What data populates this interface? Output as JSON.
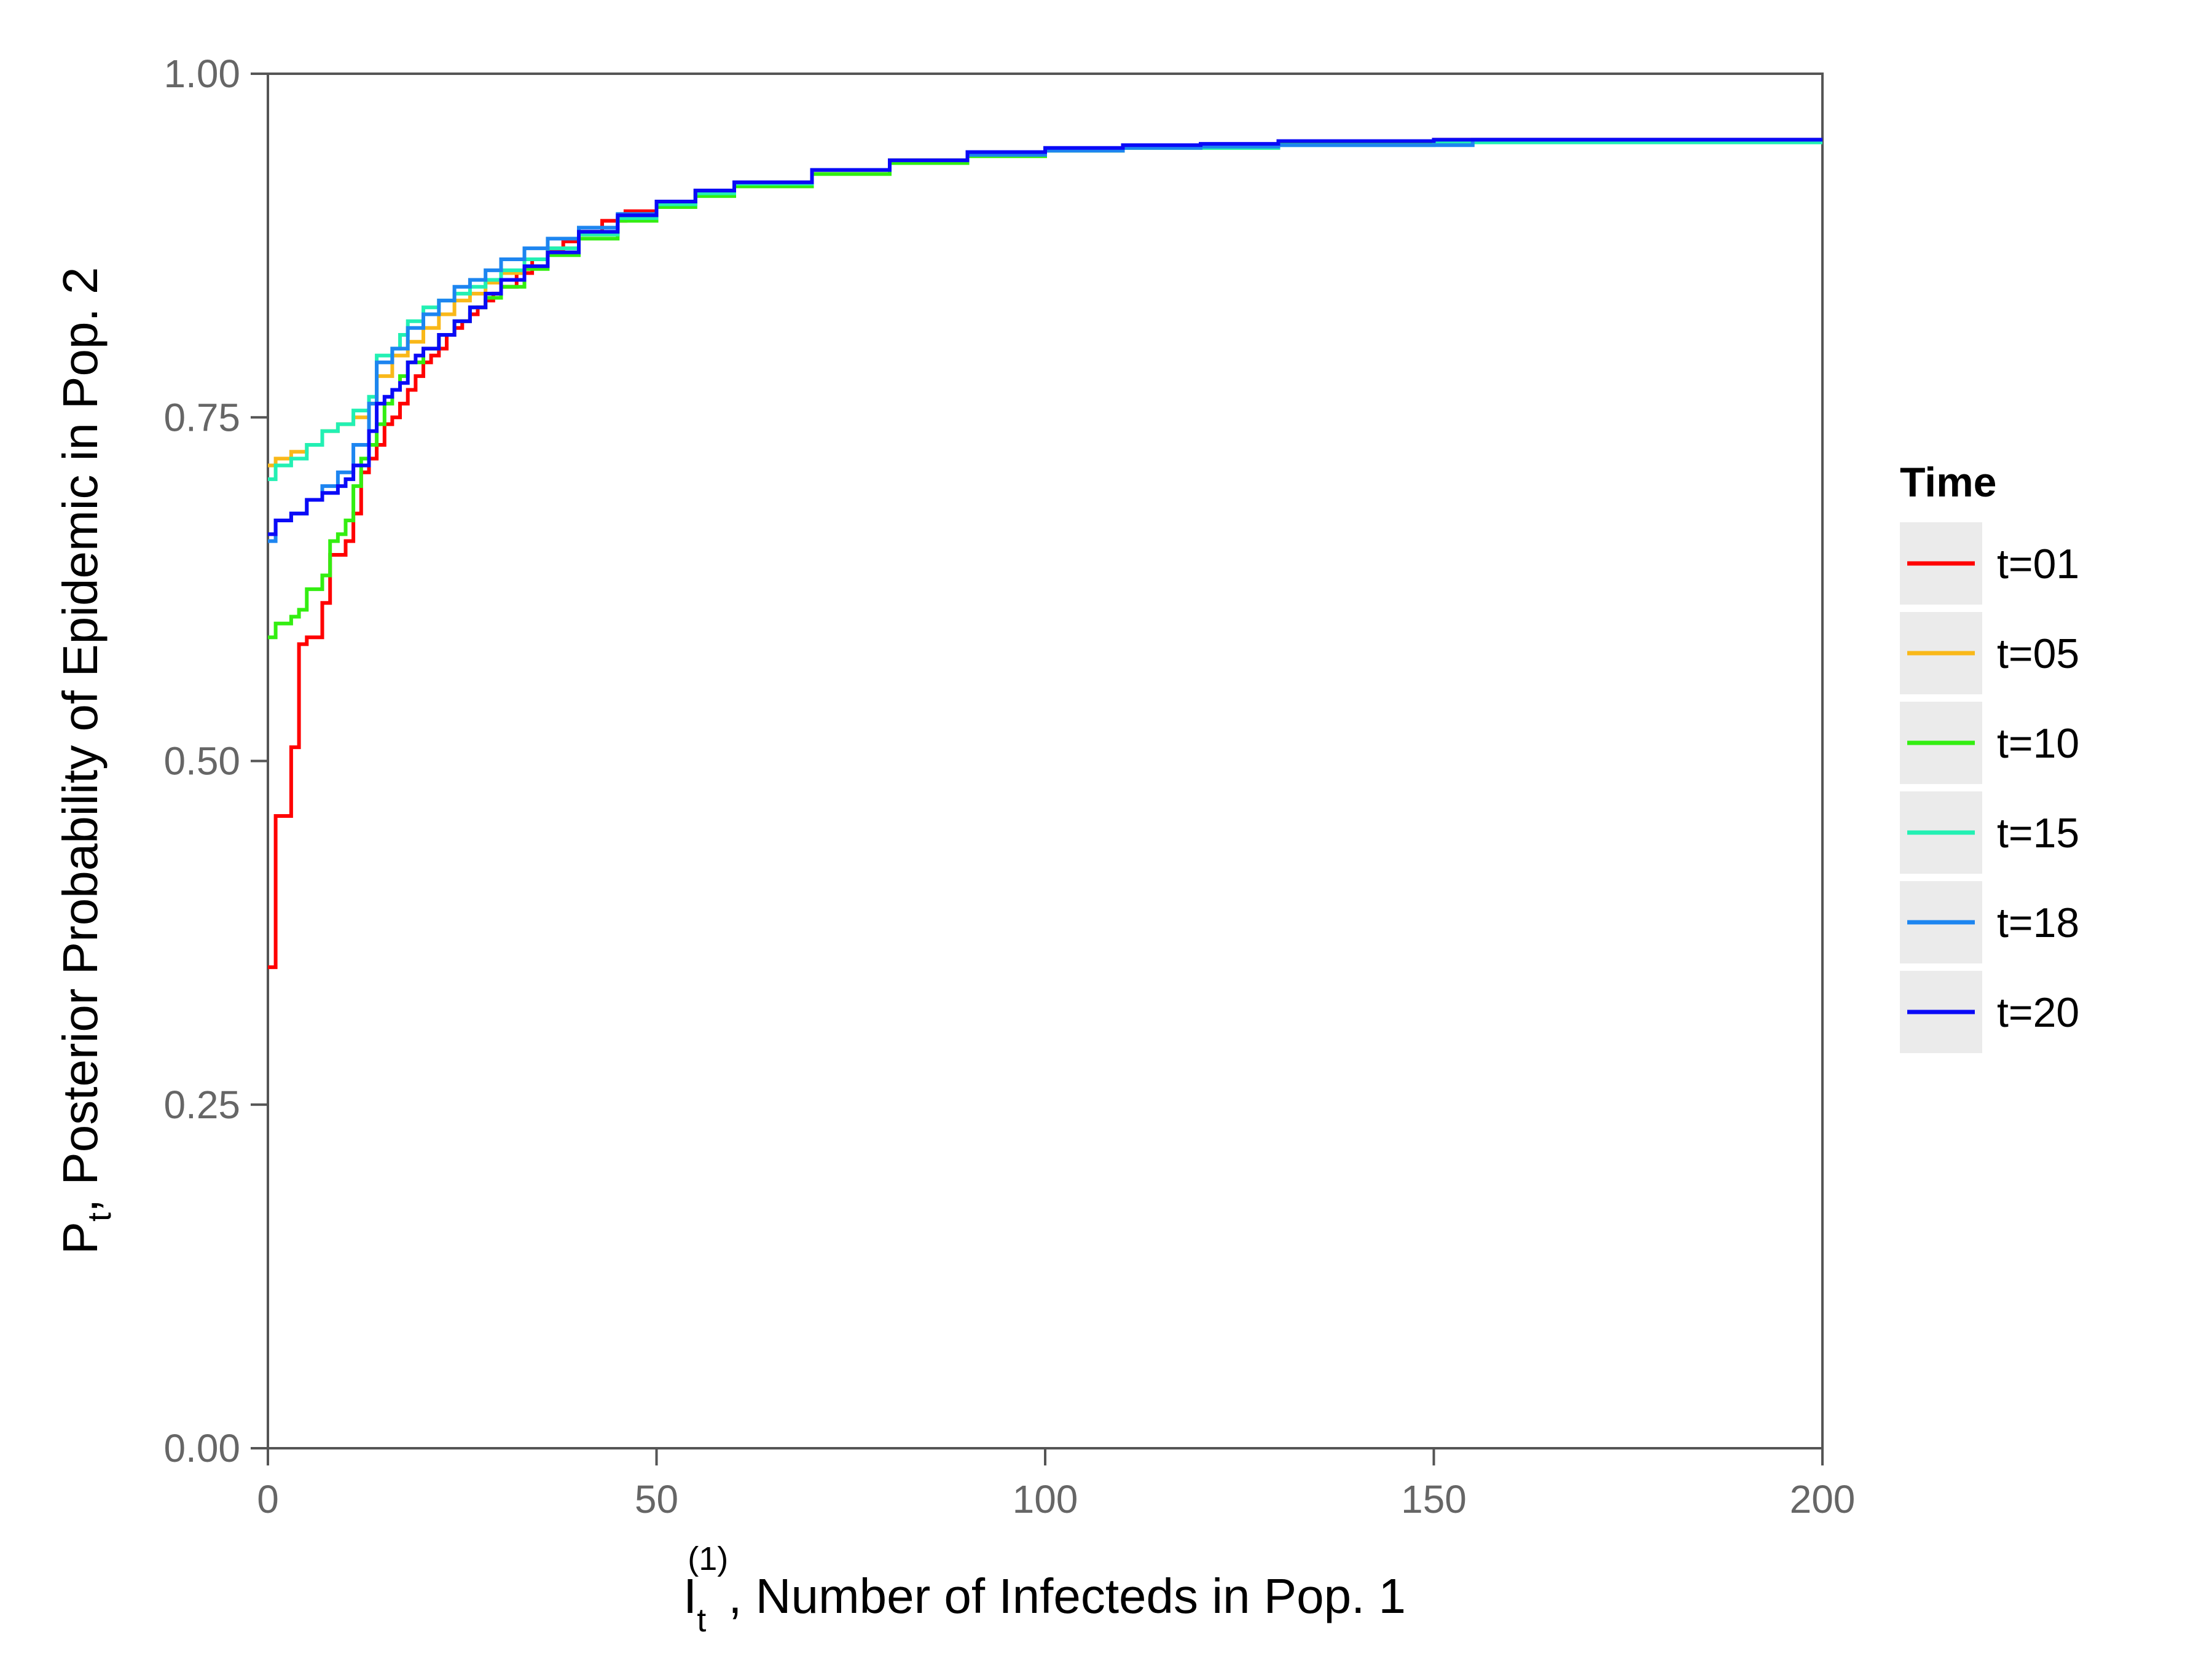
{
  "chart_data": {
    "type": "line",
    "step": true,
    "title": "",
    "xlabel": {
      "main": "I",
      "sub": "t",
      "sup": "(1)",
      "rest": ", Number of Infecteds in Pop. 1"
    },
    "ylabel": {
      "main": "P",
      "sub": "t",
      "rest": ", Posterior Probability of Epidemic in Pop. 2"
    },
    "xlim": [
      0,
      200
    ],
    "ylim": [
      0,
      1
    ],
    "xticks": [
      0,
      50,
      100,
      150,
      200
    ],
    "yticks": [
      0,
      0.25,
      0.5,
      0.75,
      1
    ],
    "xtick_labels": [
      "0",
      "50",
      "100",
      "150",
      "200"
    ],
    "ytick_labels": [
      "0.00",
      "0.25",
      "0.50",
      "0.75",
      "1.00"
    ],
    "legend": {
      "title": "Time",
      "position": "right"
    },
    "series": [
      {
        "name": "t=01",
        "color": "#ff0000",
        "x": [
          0,
          1,
          3,
          4,
          5,
          7,
          8,
          10,
          11,
          12,
          13,
          14,
          15,
          16,
          17,
          18,
          19,
          20,
          21,
          22,
          23,
          24,
          25,
          26,
          27,
          28,
          29,
          30,
          32,
          34,
          36,
          38,
          40,
          43,
          46,
          50,
          55,
          60,
          70,
          80,
          90,
          100,
          110,
          120,
          130,
          150,
          200
        ],
        "y": [
          0.35,
          0.46,
          0.51,
          0.585,
          0.59,
          0.615,
          0.65,
          0.66,
          0.68,
          0.71,
          0.72,
          0.73,
          0.745,
          0.75,
          0.76,
          0.77,
          0.78,
          0.79,
          0.795,
          0.8,
          0.81,
          0.815,
          0.82,
          0.825,
          0.83,
          0.835,
          0.84,
          0.845,
          0.855,
          0.865,
          0.872,
          0.878,
          0.885,
          0.893,
          0.9,
          0.907,
          0.915,
          0.921,
          0.93,
          0.937,
          0.941,
          0.945,
          0.947,
          0.948,
          0.95,
          0.952,
          0.952
        ]
      },
      {
        "name": "t=05",
        "color": "#f9b819",
        "x": [
          0,
          1,
          3,
          5,
          7,
          9,
          11,
          13,
          14,
          16,
          18,
          20,
          22,
          24,
          26,
          28,
          30,
          33,
          36,
          40,
          45,
          50,
          55,
          60,
          70,
          80,
          90,
          100,
          110,
          130,
          150,
          200
        ],
        "y": [
          0.715,
          0.72,
          0.725,
          0.73,
          0.74,
          0.745,
          0.75,
          0.76,
          0.78,
          0.795,
          0.805,
          0.815,
          0.825,
          0.835,
          0.84,
          0.848,
          0.855,
          0.865,
          0.873,
          0.883,
          0.895,
          0.905,
          0.913,
          0.92,
          0.93,
          0.937,
          0.942,
          0.945,
          0.947,
          0.949,
          0.951,
          0.952
        ]
      },
      {
        "name": "t=10",
        "color": "#33ee11",
        "x": [
          0,
          1,
          3,
          4,
          5,
          7,
          8,
          9,
          10,
          11,
          12,
          13,
          14,
          15,
          16,
          17,
          18,
          20,
          22,
          24,
          26,
          28,
          30,
          33,
          36,
          40,
          45,
          50,
          55,
          60,
          70,
          80,
          90,
          100,
          110,
          130,
          150,
          200
        ],
        "y": [
          0.59,
          0.6,
          0.605,
          0.61,
          0.625,
          0.635,
          0.66,
          0.665,
          0.675,
          0.7,
          0.72,
          0.73,
          0.745,
          0.76,
          0.77,
          0.78,
          0.79,
          0.8,
          0.81,
          0.82,
          0.83,
          0.837,
          0.845,
          0.858,
          0.868,
          0.88,
          0.893,
          0.903,
          0.911,
          0.918,
          0.927,
          0.935,
          0.94,
          0.944,
          0.946,
          0.949,
          0.951,
          0.952
        ]
      },
      {
        "name": "t=15",
        "color": "#22f0b3",
        "x": [
          0,
          1,
          3,
          5,
          7,
          9,
          11,
          13,
          14,
          16,
          17,
          18,
          20,
          22,
          24,
          26,
          28,
          30,
          33,
          36,
          40,
          45,
          50,
          55,
          60,
          70,
          80,
          90,
          100,
          110,
          130,
          150,
          200
        ],
        "y": [
          0.705,
          0.715,
          0.72,
          0.73,
          0.74,
          0.745,
          0.755,
          0.765,
          0.795,
          0.8,
          0.81,
          0.82,
          0.83,
          0.835,
          0.84,
          0.845,
          0.85,
          0.857,
          0.865,
          0.873,
          0.883,
          0.895,
          0.905,
          0.913,
          0.92,
          0.93,
          0.937,
          0.942,
          0.945,
          0.946,
          0.948,
          0.95,
          0.952
        ]
      },
      {
        "name": "t=18",
        "color": "#1d85f0",
        "x": [
          0,
          1,
          3,
          5,
          7,
          9,
          11,
          13,
          14,
          16,
          18,
          20,
          22,
          24,
          26,
          28,
          30,
          33,
          36,
          40,
          45,
          50,
          55,
          60,
          70,
          80,
          90,
          100,
          110,
          120,
          130,
          155,
          200
        ],
        "y": [
          0.66,
          0.675,
          0.68,
          0.69,
          0.7,
          0.71,
          0.73,
          0.76,
          0.79,
          0.8,
          0.815,
          0.825,
          0.835,
          0.845,
          0.85,
          0.857,
          0.865,
          0.873,
          0.88,
          0.888,
          0.898,
          0.907,
          0.915,
          0.921,
          0.93,
          0.937,
          0.941,
          0.944,
          0.946,
          0.947,
          0.948,
          0.952,
          0.952
        ]
      },
      {
        "name": "t=20",
        "color": "#0a0af7",
        "x": [
          0,
          1,
          3,
          5,
          7,
          9,
          10,
          11,
          13,
          14,
          15,
          16,
          17,
          18,
          19,
          20,
          22,
          24,
          26,
          28,
          30,
          33,
          36,
          40,
          45,
          50,
          55,
          60,
          70,
          80,
          90,
          100,
          110,
          120,
          130,
          150,
          200
        ],
        "y": [
          0.665,
          0.675,
          0.68,
          0.69,
          0.695,
          0.7,
          0.705,
          0.715,
          0.74,
          0.76,
          0.765,
          0.77,
          0.775,
          0.79,
          0.795,
          0.8,
          0.81,
          0.82,
          0.83,
          0.84,
          0.85,
          0.86,
          0.87,
          0.885,
          0.897,
          0.907,
          0.915,
          0.921,
          0.93,
          0.937,
          0.943,
          0.946,
          0.948,
          0.949,
          0.951,
          0.952,
          0.952
        ]
      }
    ]
  }
}
